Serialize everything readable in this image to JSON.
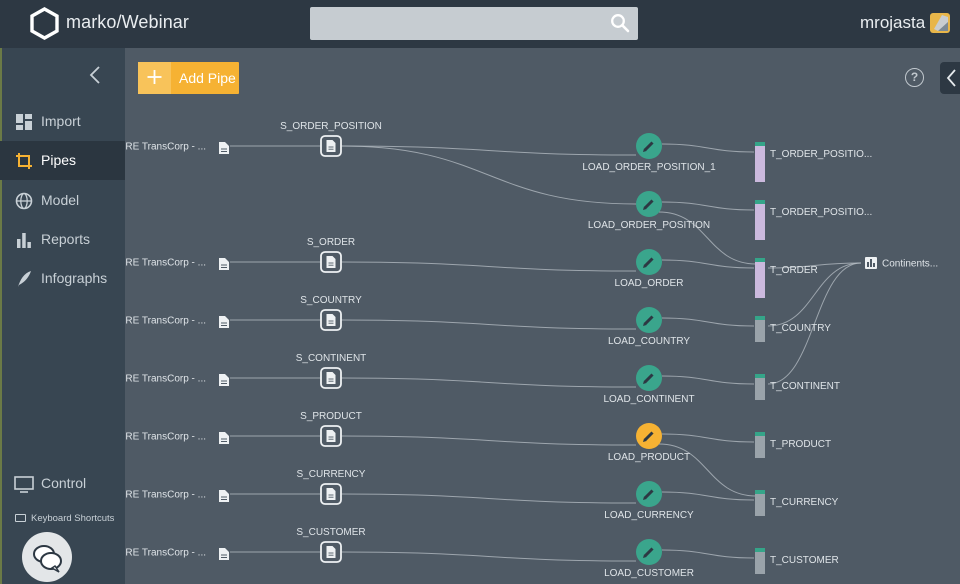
{
  "header": {
    "app_title": "marko/Webinar",
    "user_name": "mrojasta"
  },
  "sidebar": {
    "items": [
      {
        "label": "Import",
        "icon": "dashboard-icon"
      },
      {
        "label": "Pipes",
        "icon": "crop-icon"
      },
      {
        "label": "Model",
        "icon": "globe-icon"
      },
      {
        "label": "Reports",
        "icon": "bar-chart-icon"
      },
      {
        "label": "Infographs",
        "icon": "feather-icon"
      }
    ],
    "control_label": "Control",
    "shortcuts_label": "Keyboard Shortcuts"
  },
  "main": {
    "add_pipe_label": "Add Pipe",
    "help_glyph": "?"
  },
  "pipeline": {
    "colors": {
      "load": "#3aa58c",
      "load_active": "#f6b233",
      "bar_table": "#cbb9dd",
      "bar_grey": "#9aa3aa",
      "bar_top": "#35a589"
    },
    "rows": [
      {
        "source": "RE TransCorp - ...",
        "staging": "S_ORDER_POSITION",
        "load": "LOAD_ORDER_POSITION_1",
        "target": "T_ORDER_POSITIO..."
      },
      {
        "source": "",
        "staging": "",
        "load": "LOAD_ORDER_POSITION",
        "target": "T_ORDER_POSITIO..."
      },
      {
        "source": "RE TransCorp - ...",
        "staging": "S_ORDER",
        "load": "LOAD_ORDER",
        "target": "T_ORDER"
      },
      {
        "source": "RE TransCorp - ...",
        "staging": "S_COUNTRY",
        "load": "LOAD_COUNTRY",
        "target": "T_COUNTRY"
      },
      {
        "source": "RE TransCorp - ...",
        "staging": "S_CONTINENT",
        "load": "LOAD_CONTINENT",
        "target": "T_CONTINENT"
      },
      {
        "source": "RE TransCorp - ...",
        "staging": "S_PRODUCT",
        "load": "LOAD_PRODUCT",
        "target": "T_PRODUCT"
      },
      {
        "source": "RE TransCorp - ...",
        "staging": "S_CURRENCY",
        "load": "LOAD_CURRENCY",
        "target": "T_CURRENCY"
      },
      {
        "source": "RE TransCorp - ...",
        "staging": "S_CUSTOMER",
        "load": "LOAD_CUSTOMER",
        "target": "T_CUSTOMER"
      }
    ],
    "report": "Continents..."
  }
}
